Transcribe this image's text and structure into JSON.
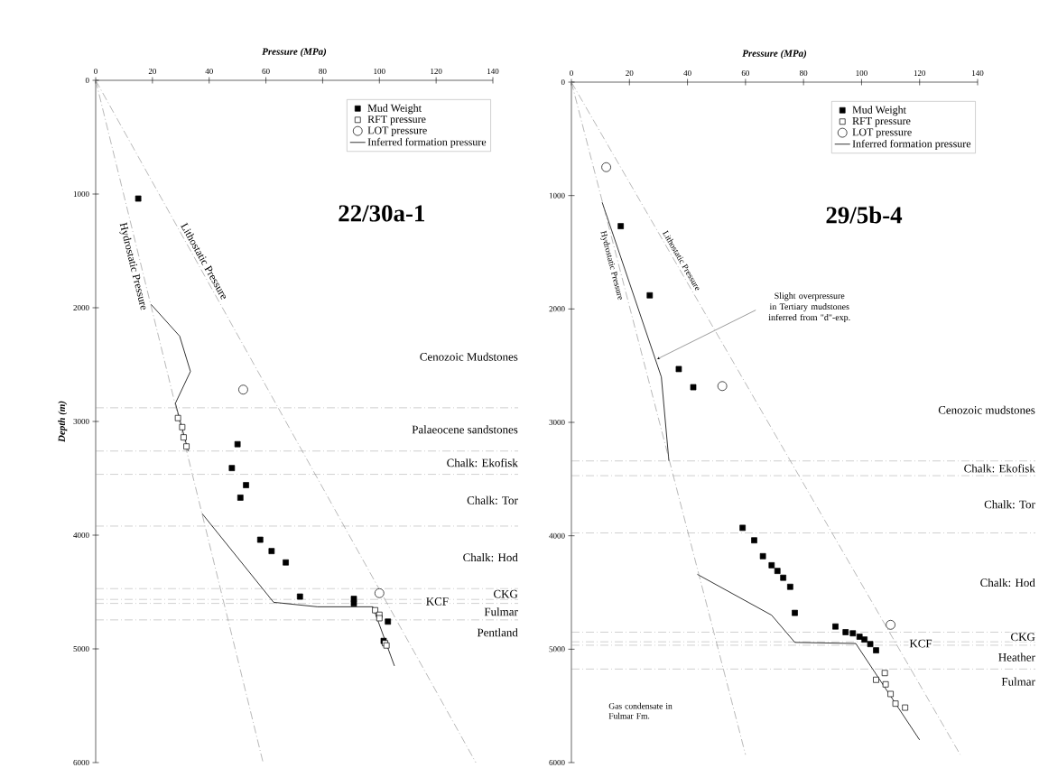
{
  "chart_data": [
    {
      "type": "scatter",
      "title": "22/30a-1",
      "xlabel": "Pressure (MPa)",
      "ylabel": "Depth (m)",
      "xlim": [
        0,
        140
      ],
      "ylim": [
        6000,
        0
      ],
      "xticks": [
        0,
        20,
        40,
        60,
        80,
        100,
        120,
        140
      ],
      "yticks": [
        0,
        1000,
        2000,
        3000,
        4000,
        5000,
        6000
      ],
      "legend": "top right",
      "series": [
        {
          "name": "Mud Weight",
          "marker": "square",
          "color": "#000000",
          "x": [
            15,
            50,
            48,
            53,
            51,
            58,
            62,
            67,
            72,
            91,
            91,
            103,
            101.5
          ],
          "values": [
            1040,
            3200,
            3410,
            3560,
            3670,
            4040,
            4140,
            4240,
            4540,
            4560,
            4600,
            4760,
            4930
          ]
        },
        {
          "name": "RFT pressure",
          "marker": "square",
          "color": "#ffffff",
          "x": [
            29,
            30.5,
            31,
            32,
            98.5,
            100,
            100,
            102,
            102.5
          ],
          "values": [
            2970,
            3050,
            3140,
            3220,
            4660,
            4700,
            4730,
            4950,
            4970
          ]
        },
        {
          "name": "LOT pressure",
          "marker": "circle",
          "color": "#ffffff",
          "x": [
            52,
            100
          ],
          "values": [
            2720,
            4510
          ]
        },
        {
          "name": "Inferred formation pressure",
          "type": "line",
          "line_style": "solid",
          "color": "#000000",
          "x": [
            19.5,
            29.6,
            33.4,
            28.1,
            32.6,
            null,
            37.5,
            62.7,
            78.2,
            97.7,
            105.3
          ],
          "values": [
            1970,
            2250,
            2560,
            2840,
            3260,
            null,
            3810,
            4590,
            4630,
            4630,
            5150
          ]
        },
        {
          "name": "Hydrostatic Pressure",
          "type": "line",
          "line_style": "dashed",
          "color": "#888888",
          "x": [
            0,
            59
          ],
          "values": [
            0,
            6000
          ]
        },
        {
          "name": "Lithostatic Pressure",
          "type": "line",
          "line_style": "dashed",
          "color": "#888888",
          "x": [
            0,
            134
          ],
          "values": [
            0,
            6000
          ]
        }
      ],
      "ref_lines": [
        {
          "axis": "y",
          "value": 2880,
          "color": "#888888",
          "line_style": "dashed"
        },
        {
          "axis": "y",
          "value": 3260,
          "color": "#888888",
          "line_style": "dashed"
        },
        {
          "axis": "y",
          "value": 3465,
          "color": "#888888",
          "line_style": "dashed"
        },
        {
          "axis": "y",
          "value": 3920,
          "color": "#888888",
          "line_style": "dashed"
        },
        {
          "axis": "y",
          "value": 4470,
          "color": "#888888",
          "line_style": "dashed"
        },
        {
          "axis": "y",
          "value": 4565,
          "color": "#888888",
          "line_style": "dashed"
        },
        {
          "axis": "y",
          "value": 4600,
          "color": "#888888",
          "line_style": "dashed"
        },
        {
          "axis": "y",
          "value": 4745,
          "color": "#888888",
          "line_style": "dashed"
        }
      ],
      "annotations": [
        "Cenozoic Mudstones",
        "Palaeocene sandstones",
        "Chalk: Ekofisk",
        "Chalk: Tor",
        "Chalk: Hod",
        "CKG",
        "KCF",
        "Fulmar",
        "Pentland"
      ]
    },
    {
      "type": "scatter",
      "title": "29/5b-4",
      "xlabel": "Pressure (MPa)",
      "xlim": [
        0,
        140
      ],
      "ylim": [
        6000,
        0
      ],
      "xticks": [
        0,
        20,
        40,
        60,
        80,
        100,
        120,
        140
      ],
      "yticks": [
        0,
        1000,
        2000,
        3000,
        4000,
        5000,
        6000
      ],
      "legend": "top right",
      "series": [
        {
          "name": "Mud Weight",
          "marker": "square",
          "color": "#000000",
          "x": [
            17,
            27,
            37,
            42,
            59,
            63,
            66,
            69,
            71,
            73,
            75.4,
            77,
            91,
            94.5,
            97,
            99.3,
            101,
            103,
            105
          ],
          "values": [
            1270,
            1880,
            2530,
            2690,
            3930,
            4040,
            4180,
            4260,
            4310,
            4370,
            4450,
            4680,
            4800,
            4850,
            4860,
            4890,
            4915,
            4955,
            5010
          ]
        },
        {
          "name": "RFT pressure",
          "marker": "square",
          "color": "#ffffff",
          "x": [
            108,
            105,
            108.3,
            110,
            111.7,
            115
          ],
          "values": [
            5210,
            5270,
            5310,
            5395,
            5480,
            5515
          ]
        },
        {
          "name": "LOT pressure",
          "marker": "circle",
          "color": "#ffffff",
          "x": [
            12,
            52,
            110
          ],
          "values": [
            750,
            2680,
            4785
          ]
        },
        {
          "name": "Inferred formation pressure",
          "type": "line",
          "line_style": "solid",
          "color": "#000000",
          "x": [
            10.6,
            31,
            33.6,
            null,
            43.4,
            69,
            77,
            98,
            120
          ],
          "values": [
            1060,
            2600,
            3340,
            null,
            4340,
            4700,
            4940,
            4950,
            5800
          ]
        },
        {
          "name": "Hydrostatic Pressure",
          "type": "line",
          "line_style": "dashed",
          "color": "#888888",
          "x": [
            0,
            60
          ],
          "values": [
            0,
            5930
          ]
        },
        {
          "name": "Lithostatic Pressure",
          "type": "line",
          "line_style": "dashed",
          "color": "#888888",
          "x": [
            0,
            134
          ],
          "values": [
            0,
            5930
          ]
        }
      ],
      "ref_lines": [
        {
          "axis": "y",
          "value": 3340,
          "color": "#888888",
          "line_style": "dashed"
        },
        {
          "axis": "y",
          "value": 3470,
          "color": "#888888",
          "line_style": "dashed"
        },
        {
          "axis": "y",
          "value": 3975,
          "color": "#888888",
          "line_style": "dashed"
        },
        {
          "axis": "y",
          "value": 4850,
          "color": "#888888",
          "line_style": "dashed"
        },
        {
          "axis": "y",
          "value": 4935,
          "color": "#888888",
          "line_style": "dashed"
        },
        {
          "axis": "y",
          "value": 4965,
          "color": "#888888",
          "line_style": "dashed"
        },
        {
          "axis": "y",
          "value": 5175,
          "color": "#888888",
          "line_style": "dashed"
        }
      ],
      "annotations": [
        "Cenozoic mudstones",
        "Chalk: Ekofisk",
        "Chalk: Tor",
        "Chalk: Hod",
        "CKG",
        "KCF",
        "Heather",
        "Fulmar",
        "Slight overpressure in Tertiary mudstones inferred from \"d\"-exp.",
        "Gas condensate in Fulmar Fm."
      ]
    }
  ]
}
